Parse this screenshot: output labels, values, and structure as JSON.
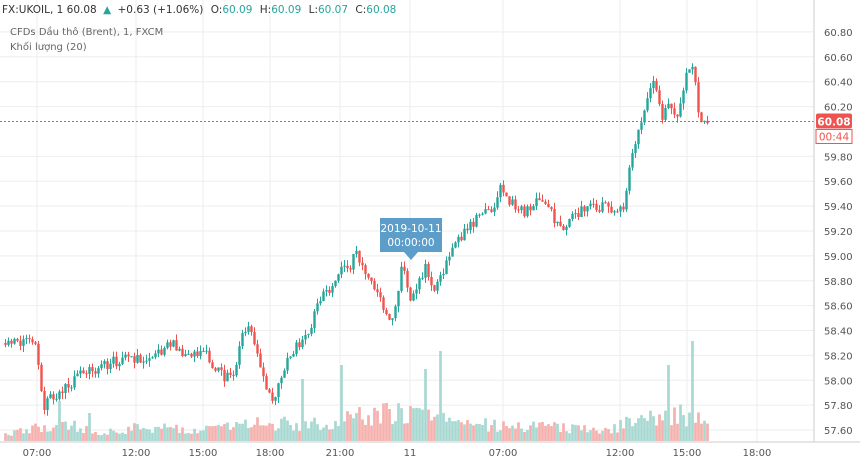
{
  "header": {
    "symbol_line": "FX:UKOIL, 1 60.08",
    "change": "+0.63 (+1.06%)",
    "o_label": "O:",
    "o_value": "60.09",
    "h_label": "H:",
    "h_value": "60.09",
    "l_label": "L:",
    "l_value": "60.07",
    "c_label": "C:",
    "c_value": "60.08",
    "instrument": "CFDs Dầu thô (Brent), 1, FXCM",
    "volume_label": "Khối lượng (20)"
  },
  "price_badge": {
    "price": "60.08",
    "countdown": "00:44"
  },
  "tooltip": {
    "date": "2019-10-11",
    "time": "00:00:00"
  },
  "colors": {
    "up": "#26a69a",
    "down": "#ef5350",
    "vol_up": "#a8d8d2",
    "vol_down": "#f4b1ae",
    "grid": "#eeeeee",
    "price_line": "#ef5350",
    "tooltip_bg": "#5c9ec9",
    "text": "#555555"
  },
  "chart_data": {
    "type": "candlestick",
    "y_ticks": [
      "60.80",
      "60.60",
      "60.40",
      "60.20",
      "59.80",
      "59.60",
      "59.40",
      "59.20",
      "59.00",
      "58.80",
      "58.60",
      "58.40",
      "58.20",
      "58.00",
      "57.80",
      "57.60"
    ],
    "ylim": [
      57.52,
      60.92
    ],
    "x_ticks": [
      "07:00",
      "12:00",
      "15:00",
      "18:00",
      "21:00",
      "11",
      "07:00",
      "12:00",
      "15:00",
      "18:00"
    ],
    "price_line": 60.08,
    "close_anchors": [
      [
        0,
        58.3
      ],
      [
        3,
        58.32
      ],
      [
        4,
        58.25
      ],
      [
        5,
        57.8
      ],
      [
        6,
        57.85
      ],
      [
        10,
        58.05
      ],
      [
        14,
        58.15
      ],
      [
        18,
        58.18
      ],
      [
        20,
        58.2
      ],
      [
        22,
        58.32
      ],
      [
        23,
        58.2
      ],
      [
        26,
        58.25
      ],
      [
        28,
        58.05
      ],
      [
        30,
        58.0
      ],
      [
        31,
        58.35
      ],
      [
        32,
        58.45
      ],
      [
        33,
        58.2
      ],
      [
        34,
        57.95
      ],
      [
        35,
        57.82
      ],
      [
        37,
        58.2
      ],
      [
        40,
        58.4
      ],
      [
        41,
        58.65
      ],
      [
        43,
        58.75
      ],
      [
        44,
        58.9
      ],
      [
        45,
        58.85
      ],
      [
        46,
        59.05
      ],
      [
        47,
        58.85
      ],
      [
        49,
        58.7
      ],
      [
        50,
        58.5
      ],
      [
        51,
        58.55
      ],
      [
        52,
        58.95
      ],
      [
        53,
        58.6
      ],
      [
        54,
        58.75
      ],
      [
        55,
        58.92
      ],
      [
        56,
        58.72
      ],
      [
        57,
        58.8
      ],
      [
        58,
        58.95
      ],
      [
        60,
        59.2
      ],
      [
        61,
        59.25
      ],
      [
        62,
        59.3
      ],
      [
        64,
        59.4
      ],
      [
        65,
        59.55
      ],
      [
        66,
        59.45
      ],
      [
        67,
        59.38
      ],
      [
        68,
        59.35
      ],
      [
        70,
        59.45
      ],
      [
        71,
        59.4
      ],
      [
        72,
        59.28
      ],
      [
        73,
        59.2
      ],
      [
        74,
        59.3
      ],
      [
        76,
        59.38
      ],
      [
        78,
        59.38
      ],
      [
        79,
        59.42
      ],
      [
        80,
        59.35
      ],
      [
        81,
        59.4
      ],
      [
        82,
        59.8
      ],
      [
        84,
        60.2
      ],
      [
        85,
        60.4
      ],
      [
        86,
        60.1
      ],
      [
        87,
        60.25
      ],
      [
        88,
        60.1
      ],
      [
        89,
        60.4
      ],
      [
        90,
        60.55
      ],
      [
        91,
        60.12
      ],
      [
        92,
        60.08
      ]
    ],
    "volume_profile": [
      [
        0,
        0.06
      ],
      [
        5,
        0.14
      ],
      [
        8,
        0.16
      ],
      [
        12,
        0.1
      ],
      [
        20,
        0.14
      ],
      [
        28,
        0.12
      ],
      [
        32,
        0.16
      ],
      [
        36,
        0.18
      ],
      [
        42,
        0.16
      ],
      [
        46,
        0.24
      ],
      [
        50,
        0.28
      ],
      [
        55,
        0.24
      ],
      [
        58,
        0.2
      ],
      [
        62,
        0.16
      ],
      [
        70,
        0.14
      ],
      [
        78,
        0.1
      ],
      [
        82,
        0.18
      ],
      [
        86,
        0.24
      ],
      [
        89,
        0.26
      ],
      [
        92,
        0.2
      ]
    ],
    "volume_spikes": [
      [
        7,
        0.4
      ],
      [
        11,
        0.28
      ],
      [
        39,
        0.62
      ],
      [
        44,
        0.76
      ],
      [
        55,
        0.72
      ],
      [
        57,
        0.9
      ],
      [
        87,
        0.76
      ],
      [
        90,
        1.0
      ]
    ]
  }
}
